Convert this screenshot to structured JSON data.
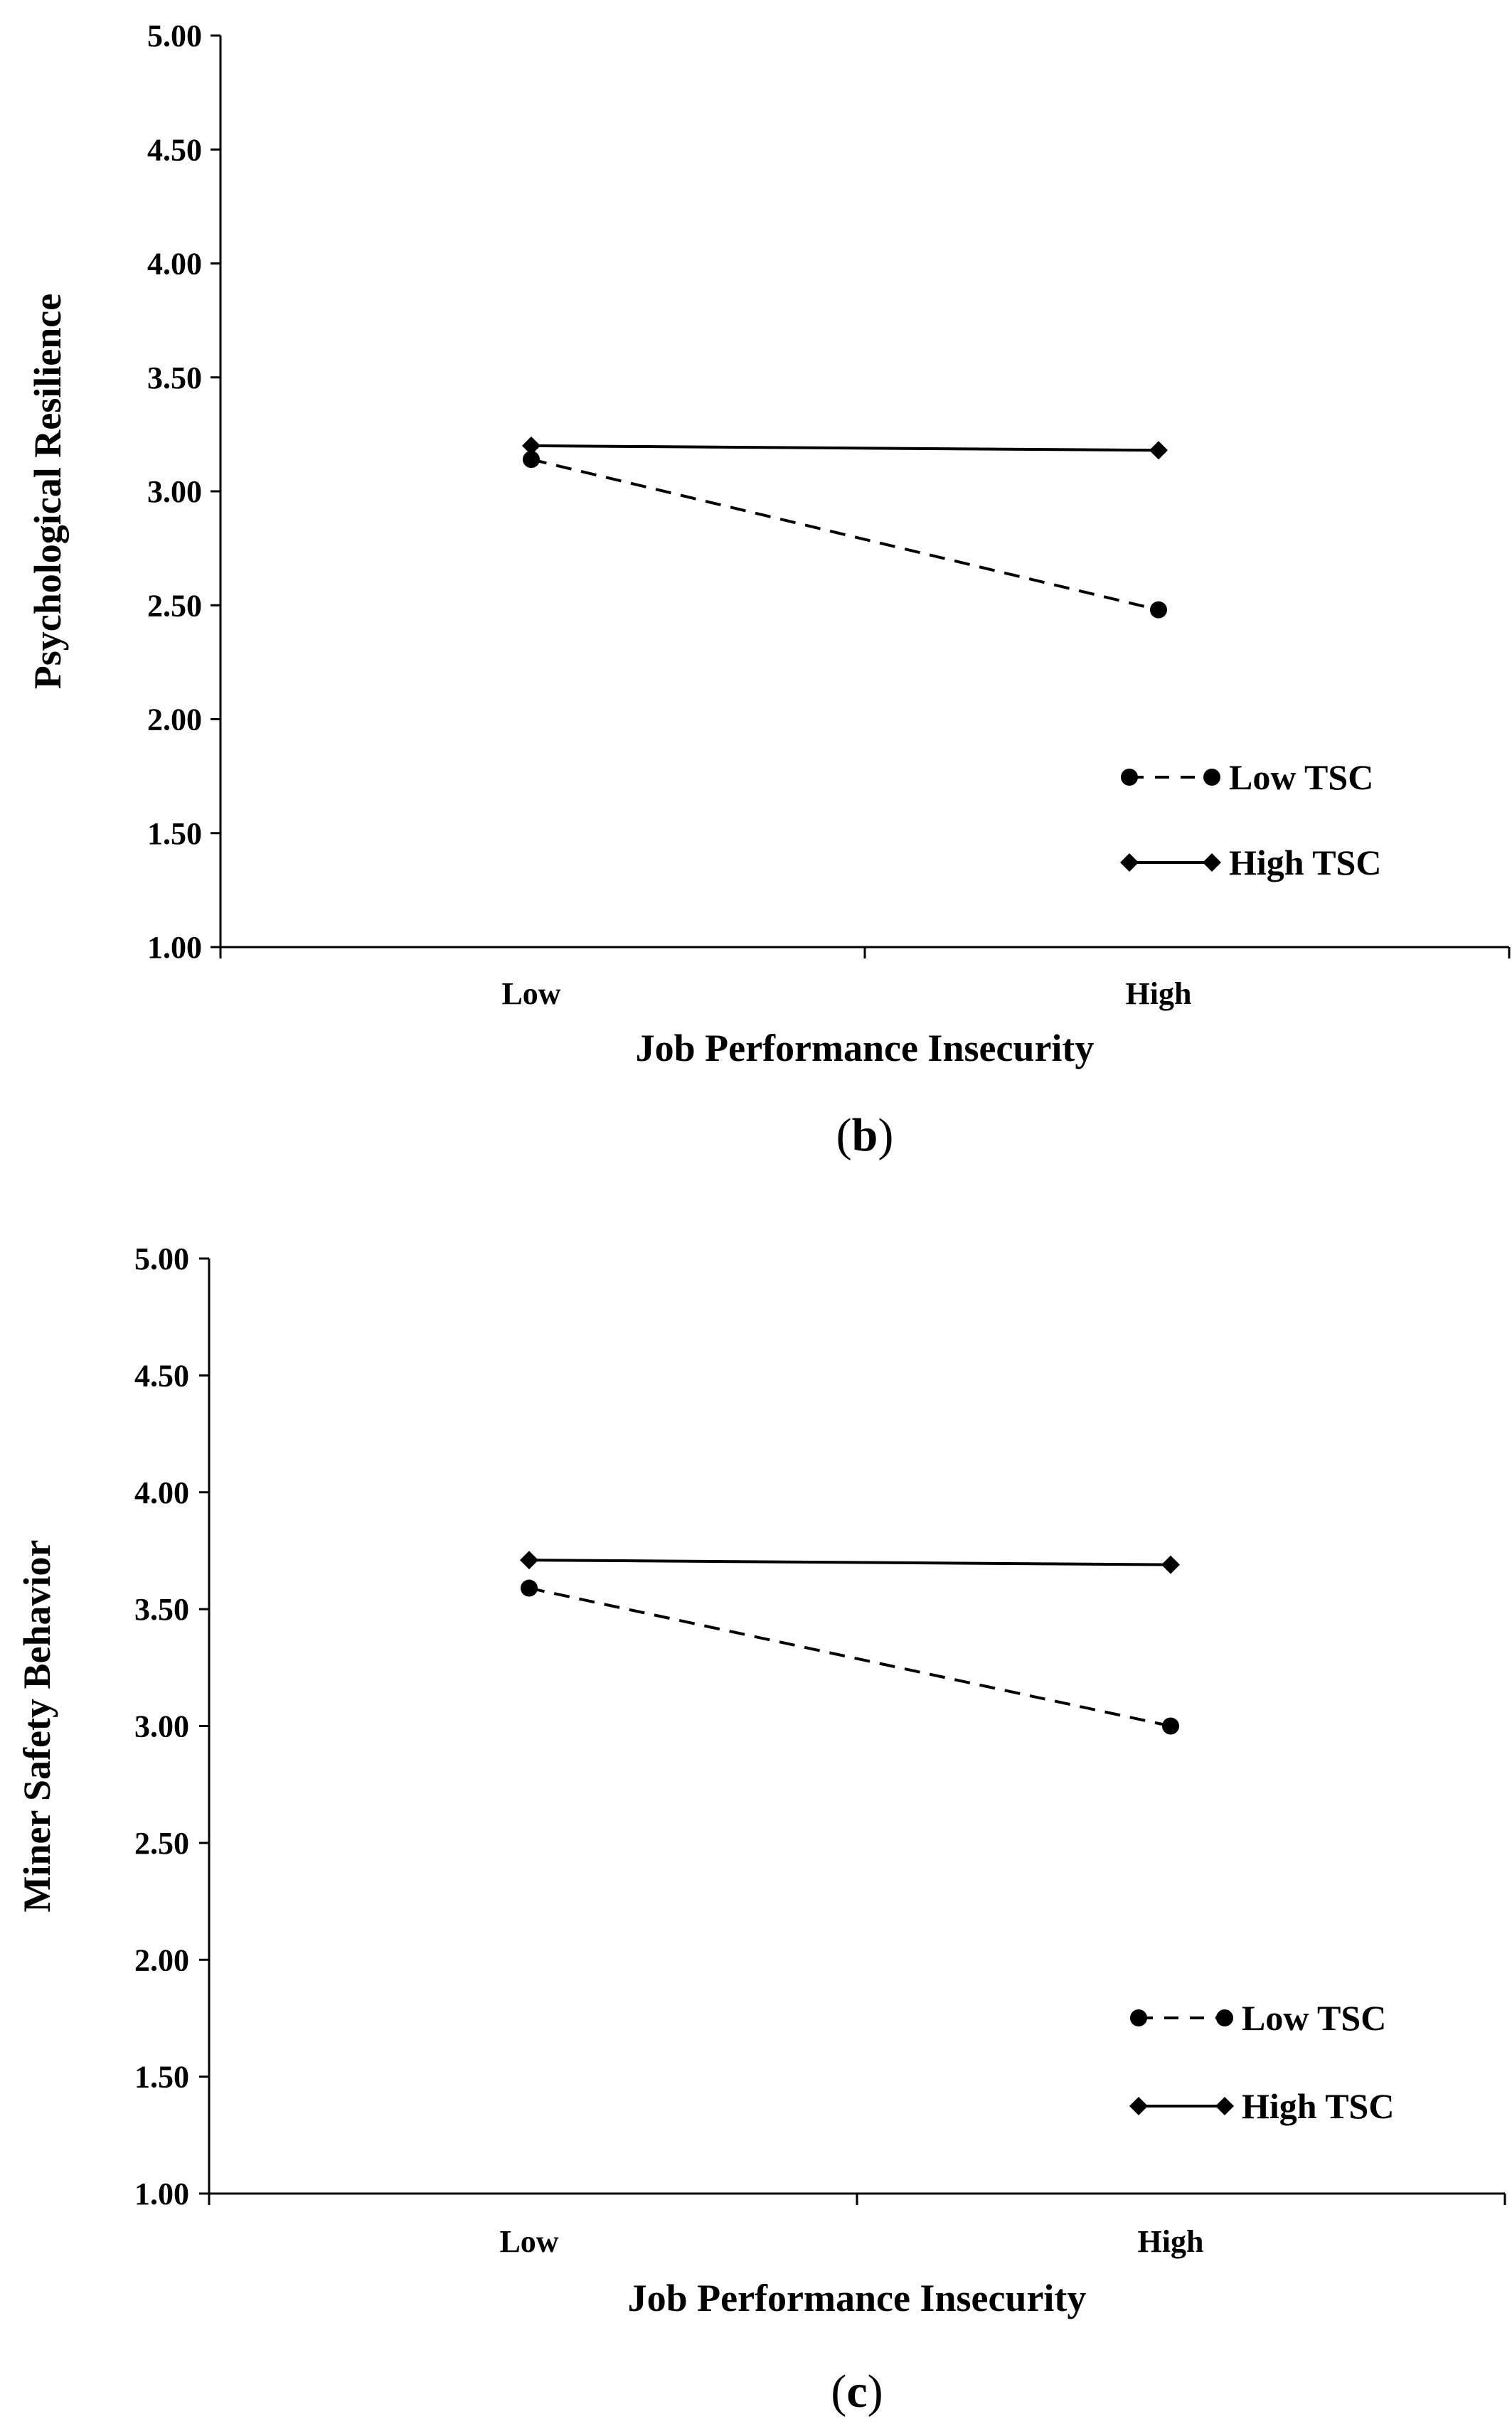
{
  "chart_data": [
    {
      "type": "line",
      "panel_label": "b",
      "title": "",
      "xlabel": "Job Performance Insecurity",
      "ylabel": "Psychological Resilience",
      "categories": [
        "Low",
        "High"
      ],
      "ylim": [
        1.0,
        5.0
      ],
      "yticks": [
        "1.00",
        "1.50",
        "2.00",
        "2.50",
        "3.00",
        "3.50",
        "4.00",
        "4.50",
        "5.00"
      ],
      "legend_position": "bottom-right",
      "series": [
        {
          "name": "Low TSC",
          "values": [
            3.14,
            2.48
          ],
          "style": "dashed",
          "marker": "circle"
        },
        {
          "name": "High TSC",
          "values": [
            3.2,
            3.18
          ],
          "style": "solid",
          "marker": "diamond"
        }
      ]
    },
    {
      "type": "line",
      "panel_label": "c",
      "title": "",
      "xlabel": "Job Performance Insecurity",
      "ylabel": "Miner Safety Behavior",
      "categories": [
        "Low",
        "High"
      ],
      "ylim": [
        1.0,
        5.0
      ],
      "yticks": [
        "1.00",
        "1.50",
        "2.00",
        "2.50",
        "3.00",
        "3.50",
        "4.00",
        "4.50",
        "5.00"
      ],
      "legend_position": "bottom-right",
      "series": [
        {
          "name": "Low TSC",
          "values": [
            3.59,
            3.0
          ],
          "style": "dashed",
          "marker": "circle"
        },
        {
          "name": "High TSC",
          "values": [
            3.71,
            3.69
          ],
          "style": "solid",
          "marker": "diamond"
        }
      ]
    }
  ]
}
